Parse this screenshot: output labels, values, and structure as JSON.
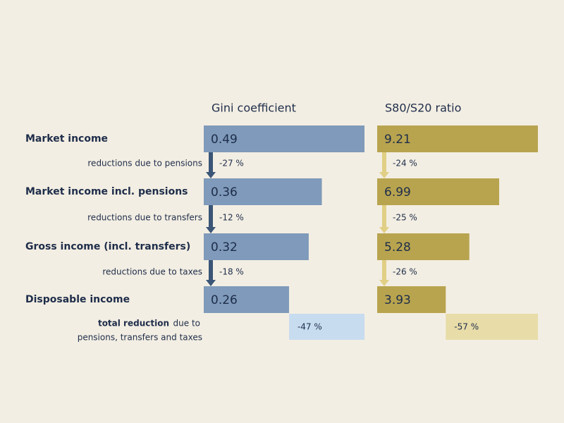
{
  "chart_data": {
    "type": "bar",
    "orientation": "horizontal",
    "categories": [
      "Market income",
      "Market income incl. pensions",
      "Gross income (incl. transfers)",
      "Disposable income"
    ],
    "reduction_labels": [
      "reductions due to pensions",
      "reductions due to transfers",
      "reductions due to taxes"
    ],
    "total_label": [
      "total reduction",
      "due to",
      "pensions, transfers and taxes"
    ],
    "panels": [
      {
        "title": "Gini coefficient",
        "color": "#7f9aba",
        "arrow_color": "#3b5577",
        "total_color": "#c8dcf0",
        "values": [
          0.49,
          0.36,
          0.32,
          0.26
        ],
        "xlim": [
          0,
          0.49
        ],
        "reductions": [
          -27,
          -12,
          -18
        ],
        "reduction_value_labels": [
          "-27 %",
          "-12 %",
          "-18 %"
        ],
        "total": -47,
        "total_value_label": "-47 %"
      },
      {
        "title": "S80/S20 ratio",
        "color": "#b8a44f",
        "arrow_color": "#e0cf85",
        "total_color": "#e8dca8",
        "values": [
          9.21,
          6.99,
          5.28,
          3.93
        ],
        "xlim": [
          0,
          9.21
        ],
        "reductions": [
          -24,
          -25,
          -26
        ],
        "reduction_value_labels": [
          "-24 %",
          "-25 %",
          "-26 %"
        ],
        "total": -57,
        "total_value_label": "-57 %"
      }
    ]
  }
}
